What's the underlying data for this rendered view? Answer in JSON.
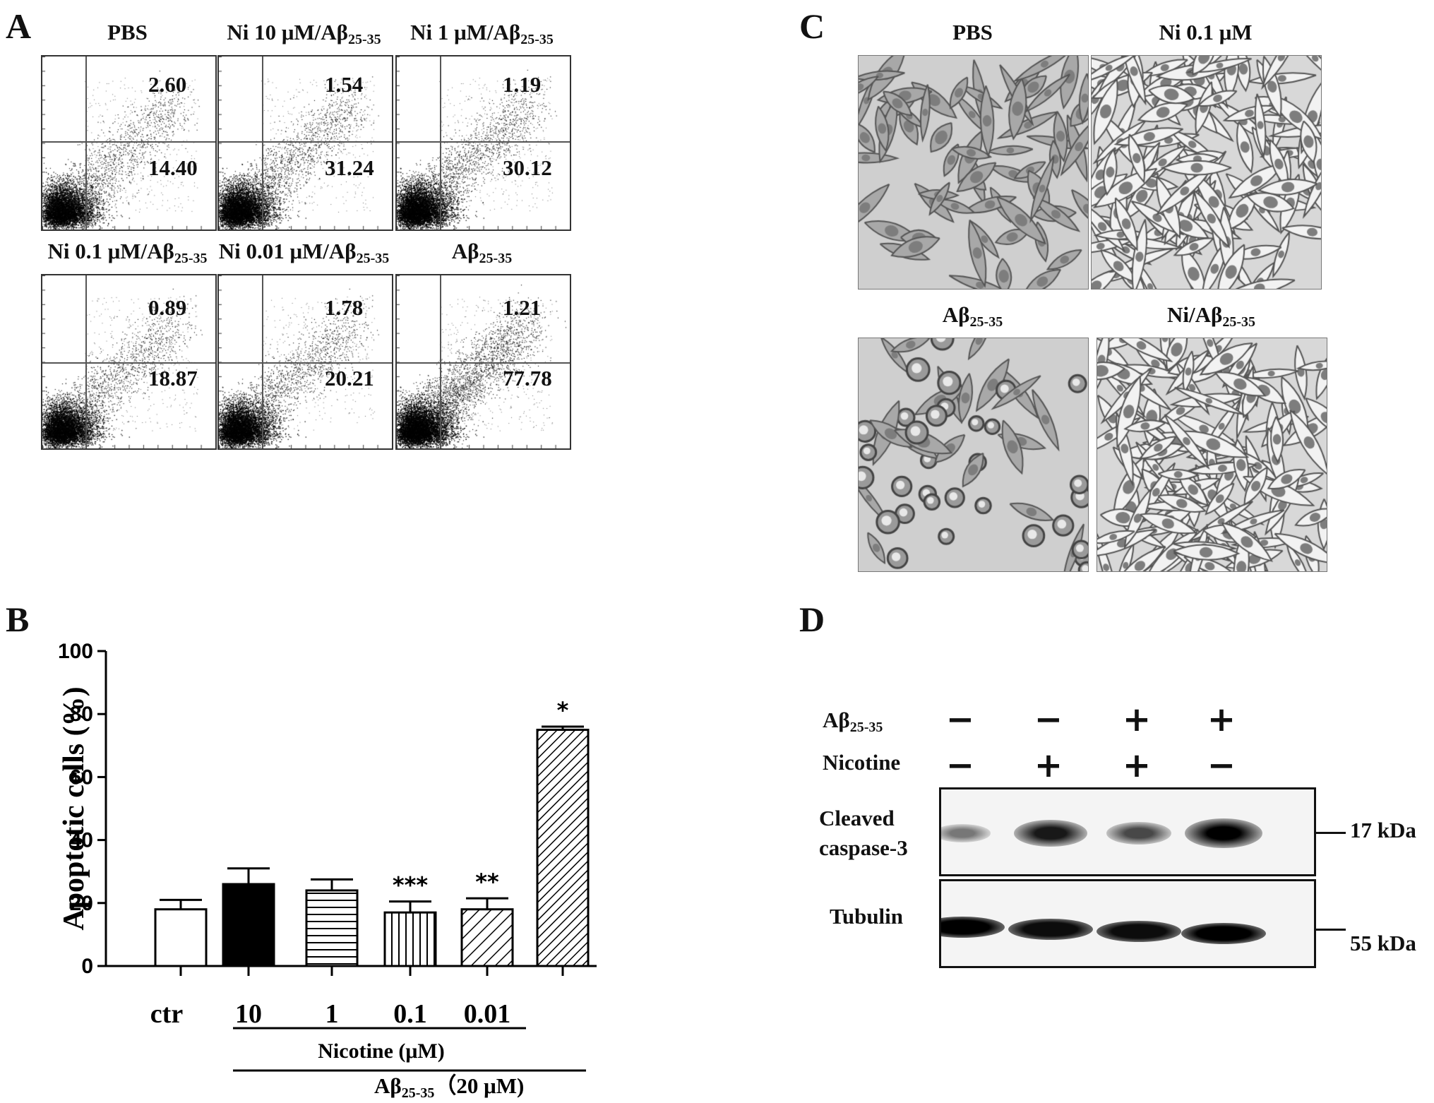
{
  "panels": {
    "a": "A",
    "b": "B",
    "c": "C",
    "d": "D"
  },
  "flow": [
    {
      "title": "PBS",
      "sub": "",
      "upper": "2.60",
      "lower": "14.40",
      "density": 1.0
    },
    {
      "title": "Ni 10 μM/Aβ",
      "sub": "25-35",
      "upper": "1.54",
      "lower": "31.24",
      "density": 1.1
    },
    {
      "title": "Ni 1 μM/Aβ",
      "sub": "25-35",
      "upper": "1.19",
      "lower": "30.12",
      "density": 1.15
    },
    {
      "title": "Ni 0.1 μM/Aβ",
      "sub": "25-35",
      "upper": "0.89",
      "lower": "18.87",
      "density": 1.0
    },
    {
      "title": "Ni 0.01 μM/Aβ",
      "sub": "25-35",
      "upper": "1.78",
      "lower": "20.21",
      "density": 1.05
    },
    {
      "title": "Aβ",
      "sub": "25-35",
      "upper": "1.21",
      "lower": "77.78",
      "density": 1.2
    }
  ],
  "chart_data": {
    "type": "bar",
    "categories": [
      "ctr",
      "10",
      "1",
      "0.1",
      "0.01",
      ""
    ],
    "values": [
      18,
      26,
      24,
      17,
      18,
      75
    ],
    "errors": [
      3,
      5,
      3.5,
      3.5,
      3.5,
      1
    ],
    "significance": [
      "",
      "",
      "",
      "***",
      "**",
      "*"
    ],
    "patterns": [
      "white",
      "black",
      "horizontal",
      "vertical",
      "diagonal",
      "diagonal-dense"
    ],
    "ylabel": "Apoptotic cells (%)",
    "ylim": [
      0,
      100
    ],
    "yticks": [
      "0",
      "20",
      "40",
      "60",
      "80",
      "100"
    ],
    "group1_label": "Nicotine (μM)",
    "group2_label": "Aβ",
    "group2_sub": "25-35",
    "group2_suffix": "（20 μM)"
  },
  "micro": [
    {
      "title": "PBS",
      "sub": "",
      "type": "sparse"
    },
    {
      "title": "Ni 0.1 μM",
      "sub": "",
      "type": "dense"
    },
    {
      "title": "Aβ",
      "sub": "25-35",
      "type": "round"
    },
    {
      "title": "Ni/Aβ",
      "sub": "25-35",
      "type": "dense"
    }
  ],
  "western": {
    "row1_label": "Aβ",
    "row1_sub": "25-35",
    "row1_signs": [
      "−",
      "−",
      "+",
      "+"
    ],
    "row2_label": "Nicotine",
    "row2_signs": [
      "−",
      "+",
      "+",
      "−"
    ],
    "blot1_label_line1": "Cleaved",
    "blot1_label_line2": "caspase-3",
    "blot2_label": "Tubulin",
    "kda1": "17 kDa",
    "kda2": "55 kDa",
    "caspase_intensity": [
      0.25,
      0.85,
      0.55,
      1.0
    ],
    "tubulin_intensity": [
      1.0,
      0.95,
      0.95,
      1.0
    ]
  }
}
